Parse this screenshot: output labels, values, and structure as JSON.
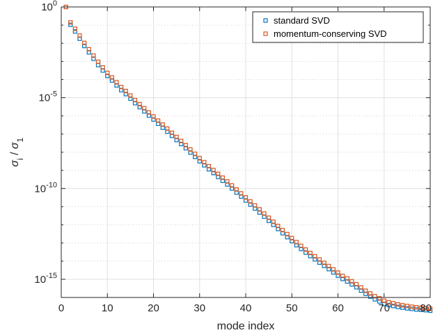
{
  "chart_data": {
    "type": "scatter",
    "xlabel": "mode index",
    "ylabel": "σi / σ1",
    "xlim": [
      0,
      80
    ],
    "ylim_exp": [
      -16,
      0
    ],
    "y_scale": "log",
    "grid": true,
    "legend_position": "top-right",
    "x_ticks": [
      "0",
      "10",
      "20",
      "30",
      "40",
      "50",
      "60",
      "70",
      "80"
    ],
    "y_ticks": [
      {
        "base": "10",
        "exp": "0",
        "value_exp": 0
      },
      {
        "base": "10",
        "exp": "-5",
        "value_exp": -5
      },
      {
        "base": "10",
        "exp": "-10",
        "value_exp": -10
      },
      {
        "base": "10",
        "exp": "-15",
        "value_exp": -15
      }
    ],
    "series": [
      {
        "name": "standard SVD",
        "color": "#0072BD",
        "marker": "square",
        "x": [
          1,
          2,
          3,
          4,
          5,
          6,
          7,
          8,
          9,
          10,
          11,
          12,
          13,
          14,
          15,
          16,
          17,
          18,
          19,
          20,
          21,
          22,
          23,
          24,
          25,
          26,
          27,
          28,
          29,
          30,
          31,
          32,
          33,
          34,
          35,
          36,
          37,
          38,
          39,
          40,
          41,
          42,
          43,
          44,
          45,
          46,
          47,
          48,
          49,
          50,
          51,
          52,
          53,
          54,
          55,
          56,
          57,
          58,
          59,
          60,
          61,
          62,
          63,
          64,
          65,
          66,
          67,
          68,
          69,
          70,
          71,
          72,
          73,
          74,
          75,
          76,
          77,
          78,
          79,
          80
        ],
        "y_exp": [
          0,
          -0.98,
          -1.35,
          -1.75,
          -2.15,
          -2.5,
          -2.85,
          -3.2,
          -3.5,
          -3.8,
          -4.05,
          -4.32,
          -4.58,
          -4.8,
          -5.05,
          -5.3,
          -5.52,
          -5.75,
          -5.98,
          -6.2,
          -6.43,
          -6.65,
          -6.87,
          -7.1,
          -7.33,
          -7.55,
          -7.78,
          -8.02,
          -8.26,
          -8.5,
          -8.72,
          -8.94,
          -9.15,
          -9.36,
          -9.57,
          -9.78,
          -10.0,
          -10.22,
          -10.44,
          -10.66,
          -10.88,
          -11.1,
          -11.32,
          -11.55,
          -11.78,
          -12.0,
          -12.23,
          -12.46,
          -12.68,
          -12.9,
          -13.12,
          -13.33,
          -13.53,
          -13.72,
          -13.9,
          -14.08,
          -14.26,
          -14.44,
          -14.62,
          -14.8,
          -14.98,
          -15.12,
          -15.28,
          -15.44,
          -15.62,
          -15.8,
          -15.95,
          -16.1,
          -16.22,
          -16.35,
          -16.42,
          -16.47,
          -16.52,
          -16.56,
          -16.6,
          -16.63,
          -16.66,
          -16.68,
          -16.7,
          -16.73
        ]
      },
      {
        "name": "momentum-conserving SVD",
        "color": "#D95319",
        "marker": "square",
        "x": [
          1,
          2,
          3,
          4,
          5,
          6,
          7,
          8,
          9,
          10,
          11,
          12,
          13,
          14,
          15,
          16,
          17,
          18,
          19,
          20,
          21,
          22,
          23,
          24,
          25,
          26,
          27,
          28,
          29,
          30,
          31,
          32,
          33,
          34,
          35,
          36,
          37,
          38,
          39,
          40,
          41,
          42,
          43,
          44,
          45,
          46,
          47,
          48,
          49,
          50,
          51,
          52,
          53,
          54,
          55,
          56,
          57,
          58,
          59,
          60,
          61,
          62,
          63,
          64,
          65,
          66,
          67,
          68,
          69,
          70,
          71,
          72,
          73,
          74,
          75,
          76,
          77,
          78,
          79,
          80
        ],
        "y_exp": [
          0,
          -0.85,
          -1.2,
          -1.58,
          -1.98,
          -2.33,
          -2.68,
          -3.02,
          -3.33,
          -3.63,
          -3.88,
          -4.15,
          -4.41,
          -4.63,
          -4.88,
          -5.13,
          -5.35,
          -5.58,
          -5.81,
          -6.03,
          -6.26,
          -6.48,
          -6.7,
          -6.93,
          -7.16,
          -7.38,
          -7.61,
          -7.85,
          -8.09,
          -8.33,
          -8.55,
          -8.77,
          -8.98,
          -9.19,
          -9.4,
          -9.61,
          -9.83,
          -10.05,
          -10.27,
          -10.49,
          -10.71,
          -10.93,
          -11.15,
          -11.38,
          -11.61,
          -11.83,
          -12.06,
          -12.29,
          -12.51,
          -12.73,
          -12.95,
          -13.16,
          -13.36,
          -13.55,
          -13.73,
          -13.91,
          -14.09,
          -14.27,
          -14.45,
          -14.63,
          -14.81,
          -14.95,
          -15.11,
          -15.27,
          -15.45,
          -15.63,
          -15.78,
          -15.93,
          -16.05,
          -16.18,
          -16.26,
          -16.32,
          -16.38,
          -16.43,
          -16.47,
          -16.51,
          -16.54,
          -16.57,
          -16.6,
          -16.62
        ]
      }
    ]
  }
}
